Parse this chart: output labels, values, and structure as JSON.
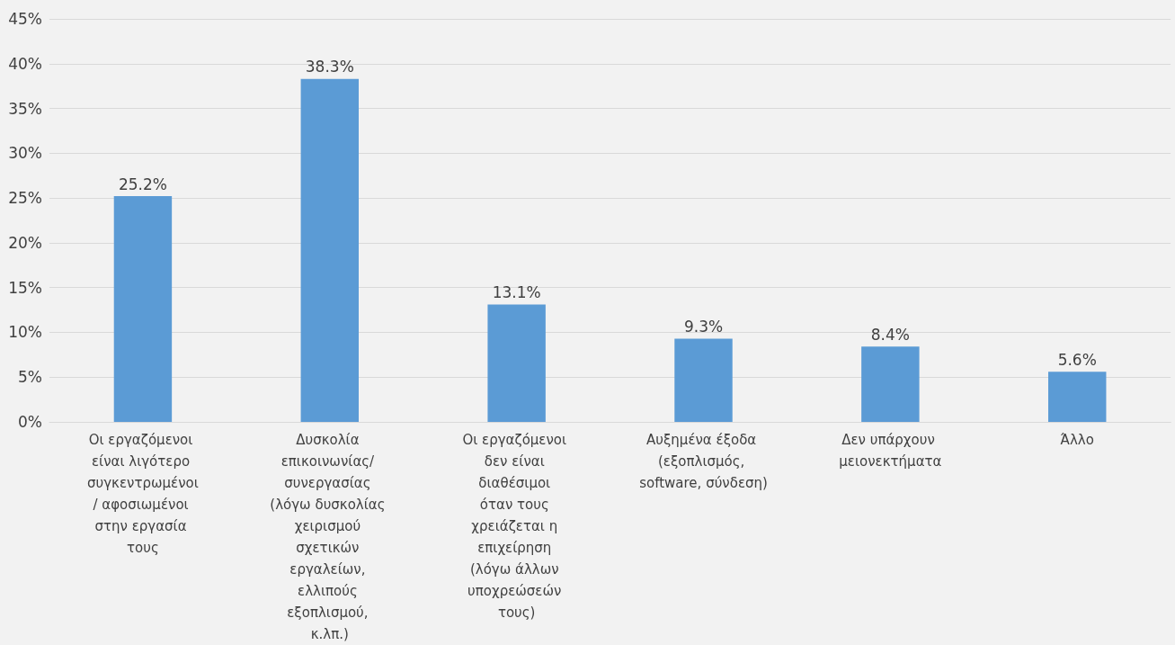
{
  "chart_data": {
    "type": "bar",
    "categories": [
      "Οι εργαζόμενοι είναι λιγότερο συγκεντρωμένοι/ αφοσιωμένοι στην εργασία τους",
      "Δυσκολία επικοινωνίας/ συνεργασίας (λόγω δυσκολίας χειρισμού σχετικών εργαλείων, ελλιπούς εξοπλισμού, κ.λπ.)",
      "Οι εργαζόμενοι δεν είναι διαθέσιμοι όταν τους χρειάζεται η επιχείρηση (λόγω άλλων υποχρεώσεών τους)",
      "Αυξημένα έξοδα (εξοπλισμός, software, σύνδεση)",
      "Δεν υπάρχουν μειονεκτήματα",
      "Άλλο"
    ],
    "values": [
      25.2,
      38.3,
      13.1,
      9.3,
      8.4,
      5.6
    ],
    "value_labels": [
      "25.2%",
      "38.3%",
      "13.1%",
      "9.3%",
      "8.4%",
      "5.6%"
    ],
    "color": "#5b9bd5",
    "ylim": [
      0,
      45
    ],
    "yticks": [
      {
        "value": 0,
        "label": "0%"
      },
      {
        "value": 5,
        "label": "5%"
      },
      {
        "value": 10,
        "label": "10%"
      },
      {
        "value": 15,
        "label": "15%"
      },
      {
        "value": 20,
        "label": "20%"
      },
      {
        "value": 25,
        "label": "25%"
      },
      {
        "value": 30,
        "label": "30%"
      },
      {
        "value": 35,
        "label": "35%"
      },
      {
        "value": 40,
        "label": "40%"
      },
      {
        "value": 45,
        "label": "45%"
      }
    ],
    "grid": "y"
  }
}
